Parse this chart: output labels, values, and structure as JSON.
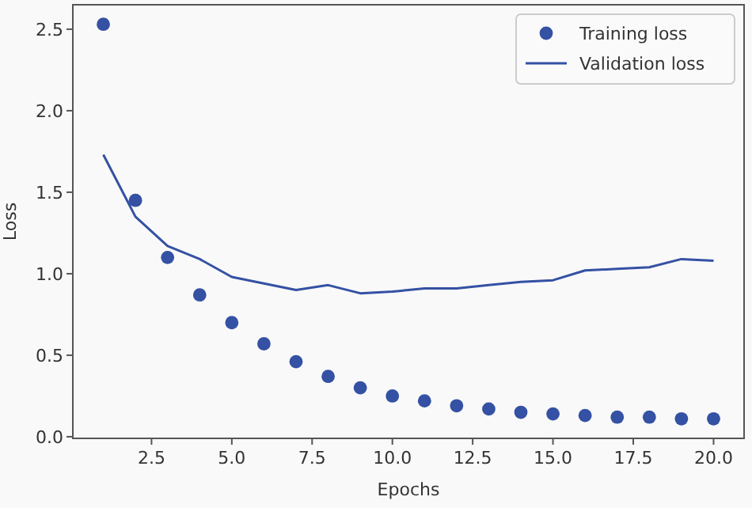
{
  "chart_data": {
    "type": "scatter",
    "xlabel": "Epochs",
    "ylabel": "Loss",
    "x": [
      1,
      2,
      3,
      4,
      5,
      6,
      7,
      8,
      9,
      10,
      11,
      12,
      13,
      14,
      15,
      16,
      17,
      18,
      19,
      20
    ],
    "xlim": [
      0.05,
      20.95
    ],
    "ylim": [
      -0.01,
      2.65
    ],
    "xticks": [
      {
        "value": 2.5,
        "label": "2.5"
      },
      {
        "value": 5,
        "label": "5.0"
      },
      {
        "value": 7.5,
        "label": "7.5"
      },
      {
        "value": 10,
        "label": "10.0"
      },
      {
        "value": 12.5,
        "label": "12.5"
      },
      {
        "value": 15,
        "label": "15.0"
      },
      {
        "value": 17.5,
        "label": "17.5"
      },
      {
        "value": 20,
        "label": "20.0"
      }
    ],
    "yticks": [
      {
        "value": 0,
        "label": "0.0"
      },
      {
        "value": 0.5,
        "label": "0.5"
      },
      {
        "value": 1,
        "label": "1.0"
      },
      {
        "value": 1.5,
        "label": "1.5"
      },
      {
        "value": 2,
        "label": "2.0"
      },
      {
        "value": 2.5,
        "label": "2.5"
      }
    ],
    "legend": "top right",
    "grid": false,
    "series": [
      {
        "name": "Training loss",
        "marker": "circle",
        "color": "#3451a3",
        "values": [
          2.53,
          1.45,
          1.1,
          0.87,
          0.7,
          0.57,
          0.46,
          0.37,
          0.3,
          0.25,
          0.22,
          0.19,
          0.17,
          0.15,
          0.14,
          0.13,
          0.12,
          0.12,
          0.11,
          0.11
        ]
      },
      {
        "name": "Validation loss",
        "type": "line",
        "line_style": "solid",
        "color": "#3451a3",
        "values": [
          1.73,
          1.35,
          1.17,
          1.09,
          0.98,
          0.94,
          0.9,
          0.93,
          0.88,
          0.89,
          0.91,
          0.91,
          0.93,
          0.95,
          0.96,
          1.02,
          1.03,
          1.04,
          1.09,
          1.08
        ]
      }
    ]
  }
}
